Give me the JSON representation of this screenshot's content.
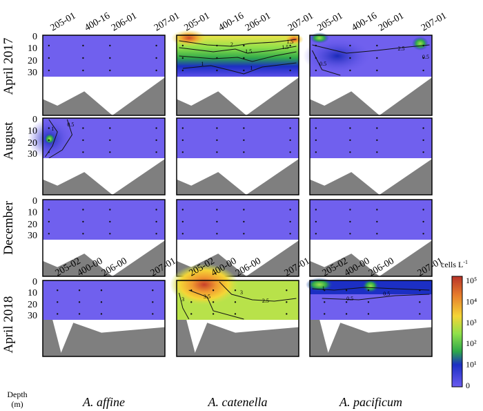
{
  "figure": {
    "row_labels": [
      "April 2017",
      "August",
      "December",
      "April 2018"
    ],
    "species": [
      "A. affine",
      "A. catenella",
      "A. pacificum"
    ],
    "depth_axis_label": [
      "Depth",
      "(m)"
    ],
    "colorbar_title": "cells L",
    "colorbar_title_sup": "-1"
  },
  "chart_data": {
    "type": "heatmap",
    "description_keys": "Contour sections of cell density vs depth along a 4-station transect",
    "depth_ticks": [
      0,
      10,
      20,
      30
    ],
    "stations_2017": [
      "205-01",
      "400-16",
      "206-01",
      "207-01"
    ],
    "stations_2018": [
      "205-02",
      "400-00",
      "206-00",
      "207-01"
    ],
    "colorbar": {
      "labels": [
        "10⁵",
        "10⁴",
        "10³",
        "10²",
        "10¹",
        "0"
      ],
      "colors": [
        "#b8342a",
        "#e67c2c",
        "#f5d536",
        "#8fe04a",
        "#2ea84a",
        "#1c2fc4",
        "#6b5cf0"
      ]
    },
    "panels": [
      {
        "row": "April 2017",
        "species": "A. affine",
        "contours": []
      },
      {
        "row": "April 2017",
        "species": "A. catenella",
        "contours": [
          "2",
          "1.5",
          "1.5",
          "1.5",
          "1",
          "1"
        ]
      },
      {
        "row": "April 2017",
        "species": "A. pacificum",
        "contours": [
          "2.5",
          "0.5",
          "0.5"
        ]
      },
      {
        "row": "August",
        "species": "A. affine",
        "contours": [
          "1",
          "0.5"
        ]
      },
      {
        "row": "August",
        "species": "A. catenella",
        "contours": []
      },
      {
        "row": "August",
        "species": "A. pacificum",
        "contours": []
      },
      {
        "row": "December",
        "species": "A. affine",
        "contours": []
      },
      {
        "row": "December",
        "species": "A. catenella",
        "contours": []
      },
      {
        "row": "December",
        "species": "A. pacificum",
        "contours": []
      },
      {
        "row": "April 2018",
        "species": "A. affine",
        "contours": []
      },
      {
        "row": "April 2018",
        "species": "A. catenella",
        "contours": [
          "3.5",
          "3",
          "2.5",
          "3"
        ]
      },
      {
        "row": "April 2018",
        "species": "A. pacificum",
        "contours": [
          "1",
          "0.5",
          "0.5"
        ]
      }
    ]
  }
}
